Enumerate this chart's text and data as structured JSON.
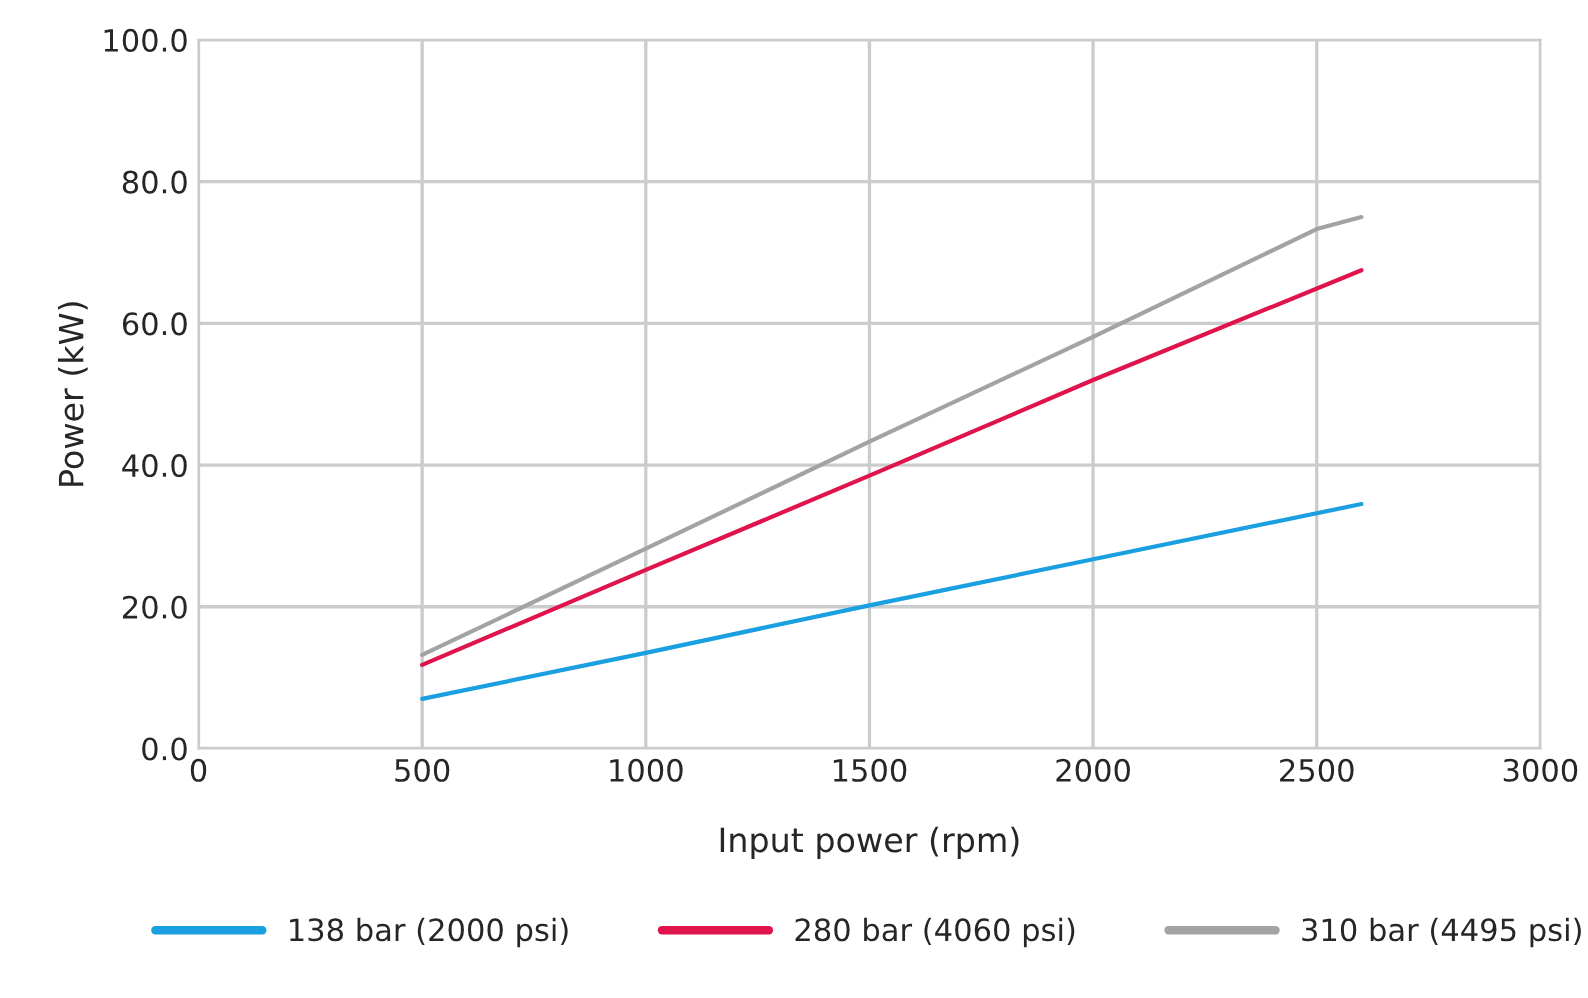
{
  "chart_data": {
    "type": "line",
    "xlabel": "Input power (rpm)",
    "ylabel": "Power (kW)",
    "xlim": [
      0,
      3000
    ],
    "xticks": [
      0,
      500,
      1000,
      1500,
      2000,
      2500,
      3000
    ],
    "ylim": [
      0,
      100
    ],
    "yticks": [
      {
        "value": 0,
        "label": "0.0"
      },
      {
        "value": 20,
        "label": "20.0"
      },
      {
        "value": 40,
        "label": "40.0"
      },
      {
        "value": 60,
        "label": "60.0"
      },
      {
        "value": 80,
        "label": "80.0"
      },
      {
        "value": 100,
        "label": "100.0"
      }
    ],
    "grid": true,
    "legend": "bottom",
    "marker": "none",
    "line_style": "solid",
    "series": [
      {
        "name": "138 bar (2000 psi)",
        "color": "#1a9fe0",
        "x": [
          500,
          1000,
          1500,
          2000,
          2600
        ],
        "values": [
          7.0,
          13.5,
          20.2,
          26.7,
          34.5
        ]
      },
      {
        "name": "280 bar (4060 psi)",
        "color": "#e0144c",
        "x": [
          500,
          1000,
          1500,
          2000,
          2600
        ],
        "values": [
          11.8,
          25.2,
          38.5,
          52.0,
          67.5
        ]
      },
      {
        "name": "310 bar (4495 psi)",
        "color": "#a3a3a3",
        "x": [
          500,
          1000,
          1500,
          2000,
          2500,
          2600
        ],
        "values": [
          13.2,
          28.2,
          43.3,
          58.1,
          73.3,
          75.0
        ]
      }
    ]
  }
}
